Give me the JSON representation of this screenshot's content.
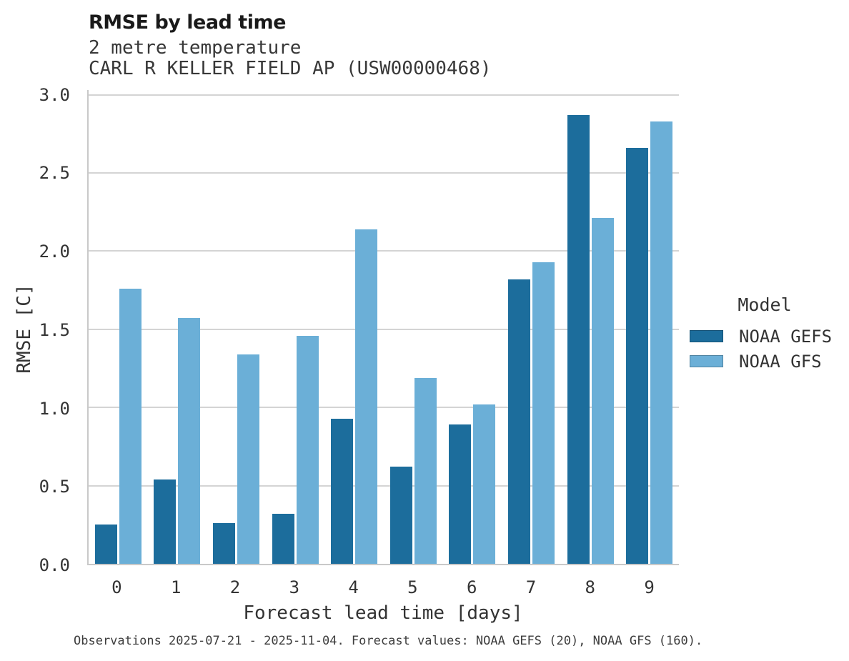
{
  "header": {
    "title": "RMSE by lead time",
    "subtitle_line1": "2 metre temperature",
    "subtitle_line2": "CARL R KELLER FIELD AP (USW00000468)"
  },
  "chart_data": {
    "type": "bar",
    "title": "RMSE by lead time",
    "subtitle": "2 metre temperature — CARL R KELLER FIELD AP (USW00000468)",
    "xlabel": "Forecast lead time [days]",
    "ylabel": "RMSE [C]",
    "categories": [
      "0",
      "1",
      "2",
      "3",
      "4",
      "5",
      "6",
      "7",
      "8",
      "9"
    ],
    "series": [
      {
        "name": "NOAA GEFS",
        "color": "#1c6d9c",
        "values": [
          0.25,
          0.54,
          0.26,
          0.32,
          0.93,
          0.62,
          0.89,
          1.82,
          2.87,
          2.66
        ]
      },
      {
        "name": "NOAA GFS",
        "color": "#6bafd7",
        "values": [
          1.76,
          1.57,
          1.34,
          1.46,
          2.14,
          1.19,
          1.02,
          1.93,
          2.21,
          2.83
        ]
      }
    ],
    "ylim": [
      0,
      3.03
    ],
    "yticks": [
      0.0,
      0.5,
      1.0,
      1.5,
      2.0,
      2.5,
      3.0
    ],
    "grid": "horizontal",
    "gridline_color": "#d4d4d4",
    "legend_position": "center-right"
  },
  "legend": {
    "title": "Model",
    "entries": [
      {
        "label": "NOAA GEFS"
      },
      {
        "label": "NOAA GFS"
      }
    ]
  },
  "footer": {
    "note": "Observations 2025-07-21 - 2025-11-04. Forecast values: NOAA GEFS (20), NOAA GFS (160)."
  }
}
